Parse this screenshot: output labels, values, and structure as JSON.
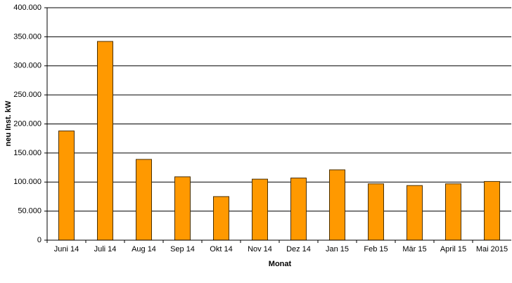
{
  "chart_data": {
    "type": "bar",
    "x_label": "Monat",
    "y_label": "neu Inst. kW",
    "categories": [
      "Juni 14",
      "Juli 14",
      "Aug 14",
      "Sep 14",
      "Okt 14",
      "Nov 14",
      "Dez 14",
      "Jan 15",
      "Feb 15",
      "Mär 15",
      "April 15",
      "Mai 2015"
    ],
    "values": [
      188000,
      342000,
      139000,
      109000,
      75000,
      105000,
      107000,
      121000,
      97000,
      94000,
      97000,
      101000
    ],
    "color": "#ff9900",
    "ylim": [
      0,
      400000
    ],
    "yticks": [
      0,
      {
        "value": 50000,
        "label": "50.000"
      },
      {
        "value": 100000,
        "label": "100.000"
      },
      {
        "value": 150000,
        "label": "150.000"
      },
      {
        "value": 200000,
        "label": "200.000"
      },
      {
        "value": 250000,
        "label": "250.000"
      },
      {
        "value": 300000,
        "label": "300.000"
      },
      {
        "value": 350000,
        "label": "350.000"
      },
      {
        "value": 400000,
        "label": "400.000"
      }
    ],
    "grid": true
  }
}
